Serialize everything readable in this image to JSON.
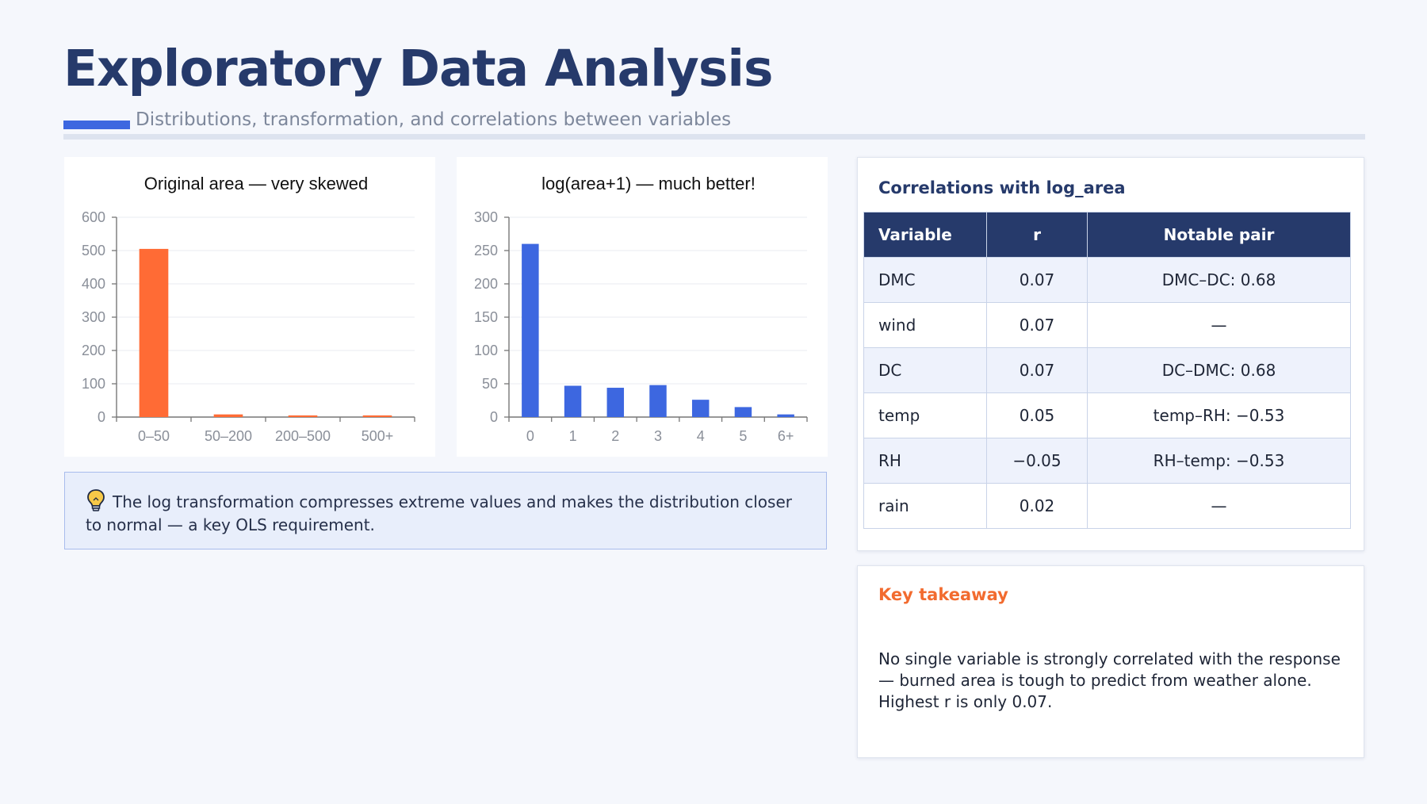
{
  "header": {
    "title": "Exploratory Data Analysis",
    "subtitle": "Distributions, transformation, and correlations between variables"
  },
  "chart_data": [
    {
      "type": "bar",
      "title": "Original area — very skewed",
      "categories": [
        "0–50",
        "50–200",
        "200–500",
        "500+"
      ],
      "values": [
        505,
        8,
        5,
        5
      ],
      "ylim": [
        0,
        600
      ],
      "yticks": [
        0,
        100,
        200,
        300,
        400,
        500,
        600
      ],
      "grid": true,
      "color": "#ff6b35"
    },
    {
      "type": "bar",
      "title": "log(area+1) — much better!",
      "categories": [
        "0",
        "1",
        "2",
        "3",
        "4",
        "5",
        "6+"
      ],
      "values": [
        260,
        47,
        44,
        48,
        26,
        15,
        4
      ],
      "ylim": [
        0,
        300
      ],
      "yticks": [
        0,
        50,
        100,
        150,
        200,
        250,
        300
      ],
      "grid": true,
      "color": "#3d67e0"
    }
  ],
  "callout": {
    "icon": "lightbulb-icon",
    "text": "The log transformation compresses extreme values and makes the distribution closer to normal — a key OLS requirement."
  },
  "correlations": {
    "title": "Correlations with log_area",
    "columns": [
      "Variable",
      "r",
      "Notable pair"
    ],
    "rows": [
      {
        "variable": "DMC",
        "r": "0.07",
        "pair": "DMC–DC: 0.68"
      },
      {
        "variable": "wind",
        "r": "0.07",
        "pair": "—"
      },
      {
        "variable": "DC",
        "r": "0.07",
        "pair": "DC–DMC: 0.68"
      },
      {
        "variable": "temp",
        "r": "0.05",
        "pair": "temp–RH: −0.53"
      },
      {
        "variable": "RH",
        "r": "−0.05",
        "pair": "RH–temp: −0.53"
      },
      {
        "variable": "rain",
        "r": "0.02",
        "pair": "—"
      }
    ]
  },
  "takeaway": {
    "title": "Key takeaway",
    "text": "No single variable is strongly correlated with the response — burned area is tough to predict from weather alone. Highest r is only 0.07."
  },
  "colors": {
    "navy": "#263a6b",
    "accent_blue": "#3d67e0",
    "accent_orange": "#ff6b35",
    "takeaway_orange": "#f26b2f"
  }
}
